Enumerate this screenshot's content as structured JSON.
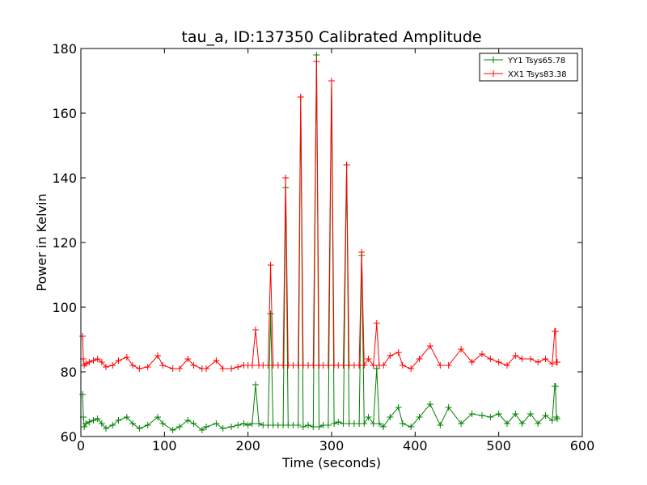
{
  "chart_data": {
    "type": "line",
    "title": "tau_a, ID:137350 Calibrated Amplitude",
    "xlabel": "Time (seconds)",
    "ylabel": "Power in Kelvin",
    "xlim": [
      0,
      600
    ],
    "ylim": [
      60,
      180
    ],
    "xticks": [
      "0",
      "100",
      "200",
      "300",
      "400",
      "500",
      "600"
    ],
    "yticks": [
      "60",
      "80",
      "100",
      "120",
      "140",
      "160",
      "180"
    ],
    "grid": false,
    "legend_position": "top-right",
    "marker": "+",
    "series": [
      {
        "name": "YY1 Tsys65.78",
        "color": "#008000",
        "x": [
          2,
          3,
          4,
          6,
          10,
          15,
          20,
          25,
          30,
          38,
          45,
          55,
          62,
          70,
          80,
          92,
          98,
          110,
          118,
          128,
          135,
          145,
          150,
          162,
          170,
          180,
          188,
          195,
          200,
          205,
          209,
          213,
          218,
          224,
          227,
          230,
          236,
          242,
          245,
          248,
          254,
          260,
          263,
          266,
          272,
          278,
          282,
          285,
          290,
          296,
          300,
          303,
          308,
          314,
          318,
          321,
          327,
          333,
          336,
          339,
          344,
          350,
          354,
          357,
          362,
          370,
          380,
          385,
          395,
          405,
          418,
          430,
          440,
          455,
          468,
          480,
          490,
          500,
          510,
          520,
          528,
          538,
          547,
          556,
          564,
          567,
          568,
          569,
          570
        ],
        "values": [
          73,
          66,
          63,
          64,
          64.5,
          65,
          65.5,
          64,
          62.5,
          63.5,
          65,
          66,
          64,
          62.5,
          63.5,
          66,
          64,
          62,
          63,
          65,
          64,
          62,
          63,
          64,
          62.5,
          63,
          63.5,
          64,
          63.5,
          64,
          76,
          64,
          63.5,
          63.5,
          98,
          63.5,
          63.5,
          63.5,
          137,
          63.5,
          63.5,
          63.5,
          165,
          63,
          63.5,
          63,
          178,
          63,
          63.5,
          63.5,
          170,
          64,
          64.5,
          64,
          144,
          64,
          64,
          64,
          116,
          64,
          66,
          64,
          81,
          64,
          63,
          66,
          69,
          64,
          63,
          66,
          70,
          63.5,
          69,
          64,
          67,
          66.5,
          66,
          67,
          64,
          67,
          64,
          67,
          64,
          66.5,
          65,
          75.5,
          75.5,
          66,
          65.5
        ]
      },
      {
        "name": "XX1 Tsys83.38",
        "color": "#ff0000",
        "x": [
          2,
          3,
          4,
          6,
          10,
          15,
          20,
          25,
          30,
          38,
          45,
          55,
          62,
          70,
          80,
          92,
          98,
          110,
          118,
          128,
          135,
          145,
          150,
          162,
          170,
          180,
          188,
          195,
          200,
          205,
          209,
          213,
          218,
          224,
          227,
          230,
          236,
          242,
          245,
          248,
          254,
          260,
          263,
          266,
          272,
          278,
          282,
          285,
          290,
          296,
          300,
          303,
          308,
          314,
          318,
          321,
          327,
          333,
          336,
          339,
          344,
          350,
          354,
          357,
          362,
          370,
          380,
          385,
          395,
          405,
          418,
          430,
          440,
          455,
          468,
          480,
          490,
          500,
          510,
          520,
          528,
          538,
          547,
          556,
          564,
          567,
          568,
          569,
          570
        ],
        "values": [
          91,
          84,
          82,
          82.5,
          83,
          83.5,
          84,
          83,
          81.5,
          82,
          83.5,
          84.5,
          82,
          81,
          81.5,
          85,
          82,
          81,
          81,
          84,
          82,
          81,
          81,
          83.5,
          81,
          81,
          81.5,
          82,
          82,
          82,
          93,
          82,
          82,
          82,
          113,
          82,
          82,
          82,
          140,
          82,
          82,
          82,
          165,
          82,
          82,
          82,
          176,
          82,
          82,
          82,
          170,
          82,
          82,
          82,
          144,
          82,
          82,
          82,
          117,
          82,
          84,
          82,
          95,
          82,
          82,
          85,
          86,
          82,
          81,
          84,
          88,
          82,
          82,
          87,
          83,
          85.5,
          84,
          83,
          82,
          85,
          84,
          84,
          83,
          84,
          82.5,
          92.5,
          92.5,
          83,
          83
        ]
      }
    ]
  }
}
